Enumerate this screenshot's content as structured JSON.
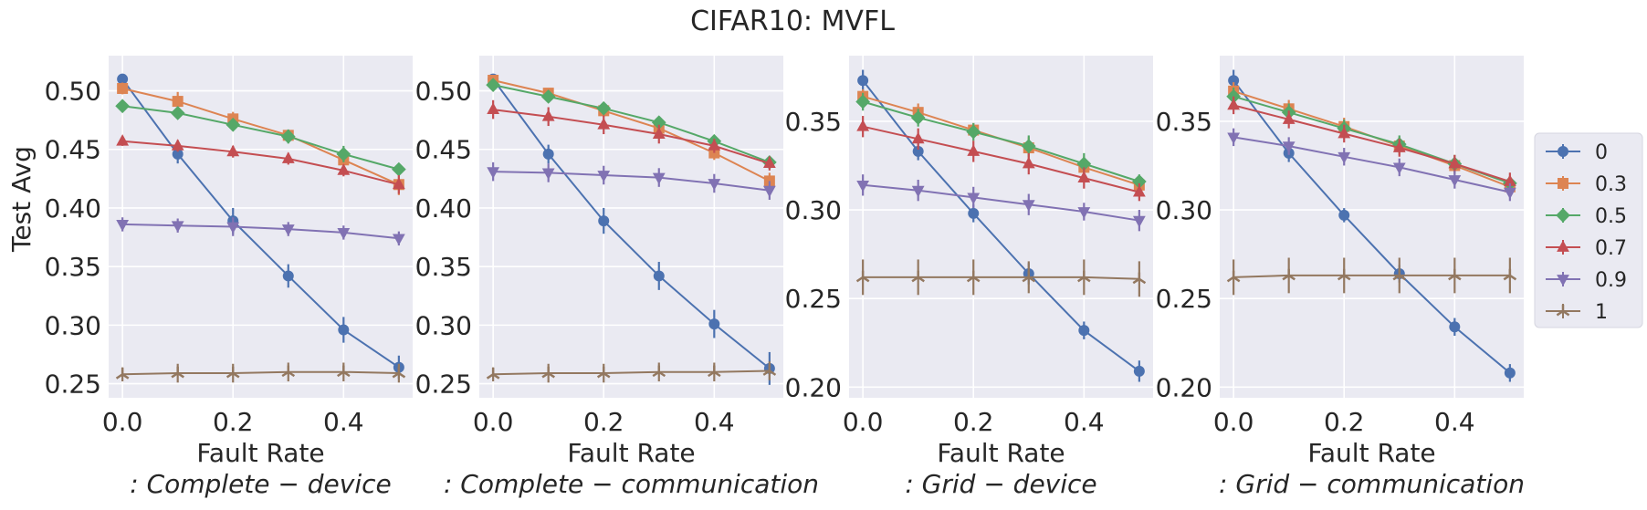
{
  "figure": {
    "suptitle": "CIFAR10: MVFL",
    "ylabel": "Test Avg",
    "xlabel": "Fault Rate"
  },
  "legend": {
    "entries": [
      {
        "label": "0",
        "color": "#4c72b0",
        "marker": "circle"
      },
      {
        "label": "0.3",
        "color": "#dd8452",
        "marker": "square"
      },
      {
        "label": "0.5",
        "color": "#55a868",
        "marker": "diamond"
      },
      {
        "label": "0.7",
        "color": "#c44e52",
        "marker": "triangle-up"
      },
      {
        "label": "0.9",
        "color": "#8172b3",
        "marker": "triangle-down"
      },
      {
        "label": "1",
        "color": "#937860",
        "marker": "tri"
      }
    ]
  },
  "chart_data": [
    {
      "type": "line",
      "title": "",
      "xlabel": "Fault Rate",
      "subtitle": ": Complete − device",
      "ylabel": "Test Avg",
      "x": [
        0,
        0.1,
        0.2,
        0.3,
        0.4,
        0.5
      ],
      "xlim": [
        -0.025,
        0.525
      ],
      "ylim": [
        0.238,
        0.53
      ],
      "xticks": [
        "0.0",
        "0.2",
        "0.4"
      ],
      "yticks": [
        "0.25",
        "0.30",
        "0.35",
        "0.40",
        "0.45",
        "0.50"
      ],
      "series": [
        {
          "name": "0",
          "values": [
            0.51,
            0.446,
            0.389,
            0.342,
            0.296,
            0.264
          ],
          "err": [
            0.004,
            0.008,
            0.011,
            0.01,
            0.011,
            0.01
          ]
        },
        {
          "name": "0.3",
          "values": [
            0.502,
            0.491,
            0.476,
            0.462,
            0.441,
            0.42
          ],
          "err": [
            0.005,
            0.008,
            0.006,
            0.004,
            0.005,
            0.009
          ]
        },
        {
          "name": "0.5",
          "values": [
            0.487,
            0.481,
            0.471,
            0.461,
            0.446,
            0.433
          ],
          "err": [
            0.004,
            0.004,
            0.005,
            0.006,
            0.007,
            0.004
          ]
        },
        {
          "name": "0.7",
          "values": [
            0.457,
            0.453,
            0.448,
            0.442,
            0.432,
            0.42
          ],
          "err": [
            0.004,
            0.005,
            0.005,
            0.005,
            0.005,
            0.008
          ]
        },
        {
          "name": "0.9",
          "values": [
            0.386,
            0.385,
            0.384,
            0.382,
            0.379,
            0.374
          ],
          "err": [
            0.006,
            0.006,
            0.008,
            0.006,
            0.006,
            0.006
          ]
        },
        {
          "name": "1",
          "values": [
            0.258,
            0.259,
            0.259,
            0.26,
            0.26,
            0.259
          ],
          "err": [
            0.006,
            0.008,
            0.008,
            0.008,
            0.008,
            0.008
          ]
        }
      ]
    },
    {
      "type": "line",
      "title": "",
      "xlabel": "Fault Rate",
      "subtitle": ": Complete − communication",
      "ylabel": "",
      "x": [
        0,
        0.1,
        0.2,
        0.3,
        0.4,
        0.5
      ],
      "xlim": [
        -0.025,
        0.525
      ],
      "ylim": [
        0.238,
        0.53
      ],
      "xticks": [
        "0.0",
        "0.2",
        "0.4"
      ],
      "yticks": [
        "0.25",
        "0.30",
        "0.35",
        "0.40",
        "0.45",
        "0.50"
      ],
      "series": [
        {
          "name": "0",
          "values": [
            0.51,
            0.446,
            0.389,
            0.342,
            0.301,
            0.263
          ],
          "err": [
            0.004,
            0.008,
            0.011,
            0.012,
            0.012,
            0.014
          ]
        },
        {
          "name": "0.3",
          "values": [
            0.509,
            0.498,
            0.483,
            0.468,
            0.447,
            0.423
          ],
          "err": [
            0.004,
            0.004,
            0.005,
            0.005,
            0.006,
            0.007
          ]
        },
        {
          "name": "0.5",
          "values": [
            0.505,
            0.495,
            0.485,
            0.473,
            0.457,
            0.439
          ],
          "err": [
            0.004,
            0.004,
            0.003,
            0.004,
            0.004,
            0.005
          ]
        },
        {
          "name": "0.7",
          "values": [
            0.484,
            0.478,
            0.471,
            0.463,
            0.453,
            0.438
          ],
          "err": [
            0.008,
            0.008,
            0.008,
            0.008,
            0.006,
            0.006
          ]
        },
        {
          "name": "0.9",
          "values": [
            0.431,
            0.43,
            0.428,
            0.426,
            0.421,
            0.415
          ],
          "err": [
            0.008,
            0.008,
            0.008,
            0.008,
            0.008,
            0.008
          ]
        },
        {
          "name": "1",
          "values": [
            0.258,
            0.259,
            0.259,
            0.26,
            0.26,
            0.261
          ],
          "err": [
            0.006,
            0.008,
            0.008,
            0.008,
            0.008,
            0.008
          ]
        }
      ]
    },
    {
      "type": "line",
      "title": "",
      "xlabel": "Fault Rate",
      "subtitle": ": Grid − device",
      "ylabel": "",
      "x": [
        0,
        0.1,
        0.2,
        0.3,
        0.4,
        0.5
      ],
      "xlim": [
        -0.025,
        0.525
      ],
      "ylim": [
        0.194,
        0.387
      ],
      "xticks": [
        "0.0",
        "0.2",
        "0.4"
      ],
      "yticks": [
        "0.20",
        "0.25",
        "0.30",
        "0.35"
      ],
      "series": [
        {
          "name": "0",
          "values": [
            0.373,
            0.333,
            0.298,
            0.264,
            0.232,
            0.209
          ],
          "err": [
            0.006,
            0.005,
            0.005,
            0.006,
            0.005,
            0.006
          ]
        },
        {
          "name": "0.3",
          "values": [
            0.364,
            0.355,
            0.345,
            0.335,
            0.324,
            0.314
          ],
          "err": [
            0.004,
            0.005,
            0.004,
            0.006,
            0.006,
            0.004
          ]
        },
        {
          "name": "0.5",
          "values": [
            0.361,
            0.352,
            0.344,
            0.336,
            0.326,
            0.316
          ],
          "err": [
            0.005,
            0.005,
            0.005,
            0.006,
            0.006,
            0.004
          ]
        },
        {
          "name": "0.7",
          "values": [
            0.347,
            0.34,
            0.333,
            0.326,
            0.318,
            0.31
          ],
          "err": [
            0.006,
            0.006,
            0.006,
            0.006,
            0.006,
            0.005
          ]
        },
        {
          "name": "0.9",
          "values": [
            0.314,
            0.311,
            0.307,
            0.303,
            0.299,
            0.294
          ],
          "err": [
            0.006,
            0.006,
            0.006,
            0.006,
            0.005,
            0.006
          ]
        },
        {
          "name": "1",
          "values": [
            0.262,
            0.262,
            0.262,
            0.262,
            0.262,
            0.261
          ],
          "err": [
            0.01,
            0.01,
            0.01,
            0.009,
            0.01,
            0.01
          ]
        }
      ]
    },
    {
      "type": "line",
      "title": "",
      "xlabel": "Fault Rate",
      "subtitle": ": Grid − communication",
      "ylabel": "",
      "x": [
        0,
        0.1,
        0.2,
        0.3,
        0.4,
        0.5
      ],
      "xlim": [
        -0.025,
        0.525
      ],
      "ylim": [
        0.194,
        0.387
      ],
      "xticks": [
        "0.0",
        "0.2",
        "0.4"
      ],
      "yticks": [
        "0.20",
        "0.25",
        "0.30",
        "0.35"
      ],
      "series": [
        {
          "name": "0",
          "values": [
            0.373,
            0.332,
            0.297,
            0.264,
            0.234,
            0.208
          ],
          "err": [
            0.006,
            0.005,
            0.004,
            0.005,
            0.005,
            0.005
          ]
        },
        {
          "name": "0.3",
          "values": [
            0.367,
            0.357,
            0.347,
            0.336,
            0.325,
            0.313
          ],
          "err": [
            0.005,
            0.005,
            0.005,
            0.005,
            0.005,
            0.004
          ]
        },
        {
          "name": "0.5",
          "values": [
            0.364,
            0.355,
            0.346,
            0.337,
            0.326,
            0.315
          ],
          "err": [
            0.005,
            0.005,
            0.005,
            0.005,
            0.005,
            0.004
          ]
        },
        {
          "name": "0.7",
          "values": [
            0.359,
            0.351,
            0.343,
            0.335,
            0.326,
            0.316
          ],
          "err": [
            0.005,
            0.005,
            0.005,
            0.005,
            0.005,
            0.005
          ]
        },
        {
          "name": "0.9",
          "values": [
            0.341,
            0.336,
            0.33,
            0.324,
            0.317,
            0.31
          ],
          "err": [
            0.005,
            0.005,
            0.005,
            0.005,
            0.005,
            0.005
          ]
        },
        {
          "name": "1",
          "values": [
            0.262,
            0.263,
            0.263,
            0.263,
            0.263,
            0.263
          ],
          "err": [
            0.01,
            0.01,
            0.01,
            0.01,
            0.01,
            0.01
          ]
        }
      ]
    }
  ]
}
